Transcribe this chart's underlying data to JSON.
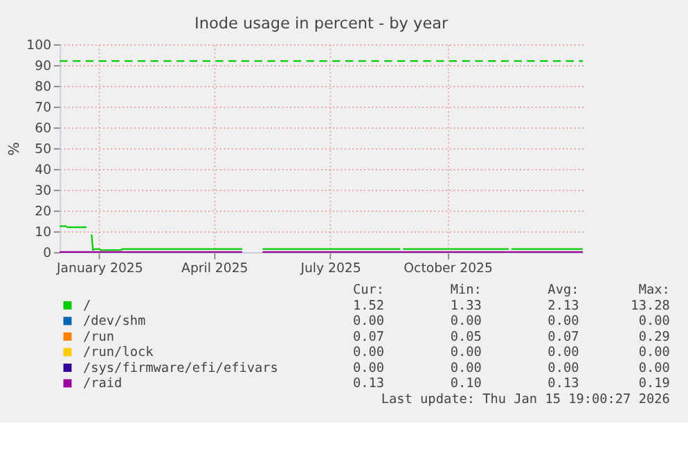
{
  "chart_data": {
    "type": "line",
    "title": "Inode usage in percent - by year",
    "ylabel": "%",
    "xlim": [
      "2024-12-01",
      "2026-01-15"
    ],
    "xticks": [
      {
        "value": "2025-01-01",
        "label": "January 2025"
      },
      {
        "value": "2025-04-01",
        "label": "April 2025"
      },
      {
        "value": "2025-07-01",
        "label": "July 2025"
      },
      {
        "value": "2025-10-01",
        "label": "October 2025"
      }
    ],
    "ylim": [
      0,
      100
    ],
    "yticks": [
      0,
      10,
      20,
      30,
      40,
      50,
      60,
      70,
      80,
      90,
      100
    ],
    "grid": true,
    "legend": "bottom",
    "series": [
      {
        "name": "/",
        "color": "#00cc00",
        "x": [
          "2024-12-01",
          "2024-12-06",
          "2024-12-07",
          "2024-12-22",
          "2024-12-23",
          "2024-12-26",
          "2024-12-27",
          "2024-12-29",
          "2025-01-01",
          "2025-01-02",
          "2025-01-18",
          "2025-01-19",
          "2025-04-23",
          "2025-04-24",
          "2025-05-09",
          "2025-08-25",
          "2025-08-26",
          "2025-08-27",
          "2025-11-18",
          "2025-11-19",
          "2025-11-20",
          "2026-01-15"
        ],
        "values": [
          12.5,
          12.5,
          12,
          12,
          null,
          8.5,
          1,
          1.5,
          1.5,
          1,
          1,
          1.5,
          1.5,
          null,
          1.5,
          1.5,
          null,
          1.5,
          1.5,
          null,
          1.5,
          1.5
        ]
      },
      {
        "name": "/dev/shm",
        "color": "#0066b3"
      },
      {
        "name": "/run",
        "color": "#ff8000"
      },
      {
        "name": "/run/lock",
        "color": "#ffcc00"
      },
      {
        "name": "/sys/firmware/efi/efivars",
        "color": "#330099"
      },
      {
        "name": "/raid",
        "color": "#990099",
        "x": [
          "2024-12-01",
          "2025-04-23",
          "2025-04-24",
          "2025-05-09",
          "2026-01-15"
        ],
        "values": [
          0.1,
          0.1,
          null,
          0.1,
          0.1
        ]
      }
    ],
    "ref_lines": [
      {
        "axis": "y",
        "value": 92,
        "color": "#00cc00",
        "line_style": "dashed"
      }
    ],
    "annotations": [
      "Cur:",
      "Min:",
      "Avg:",
      "Max:",
      "1.52",
      "1.33",
      "2.13",
      "13.28",
      "0.00",
      "0.00",
      "0.00",
      "0.00",
      "0.07",
      "0.05",
      "0.07",
      "0.29",
      "0.00",
      "0.00",
      "0.00",
      "0.00",
      "0.00",
      "0.00",
      "0.00",
      "0.00",
      "0.13",
      "0.10",
      "0.13",
      "0.19",
      "Last update: Thu Jan 15 19:00:27 2026"
    ]
  }
}
